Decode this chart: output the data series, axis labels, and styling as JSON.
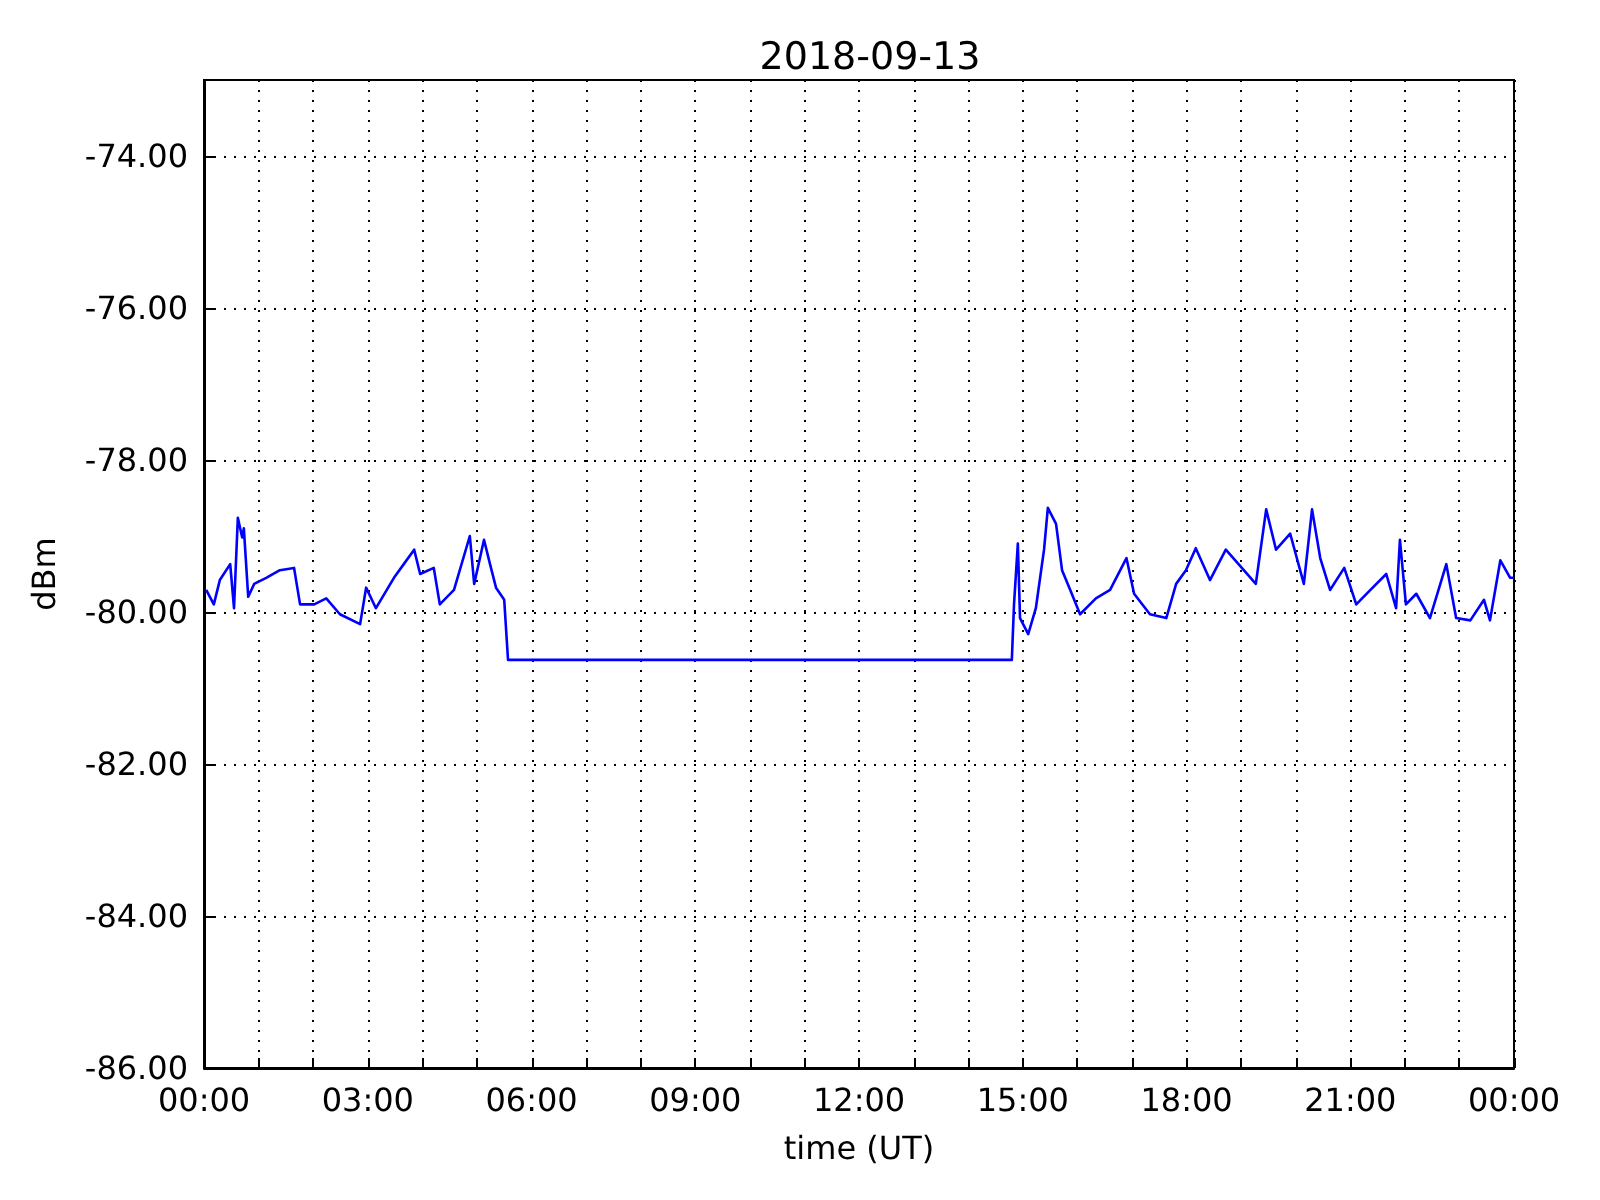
{
  "chart_data": {
    "type": "line",
    "title": "2018-09-13",
    "xlabel": "time (UT)",
    "ylabel": "dBm",
    "xlim": [
      0,
      24
    ],
    "ylim": [
      -86,
      -73
    ],
    "xticks": [
      {
        "value": 0,
        "label": "00:00"
      },
      {
        "value": 1,
        "label": null
      },
      {
        "value": 2,
        "label": null
      },
      {
        "value": 3,
        "label": "03:00"
      },
      {
        "value": 4,
        "label": null
      },
      {
        "value": 5,
        "label": null
      },
      {
        "value": 6,
        "label": "06:00"
      },
      {
        "value": 7,
        "label": null
      },
      {
        "value": 8,
        "label": null
      },
      {
        "value": 9,
        "label": "09:00"
      },
      {
        "value": 10,
        "label": null
      },
      {
        "value": 11,
        "label": null
      },
      {
        "value": 12,
        "label": "12:00"
      },
      {
        "value": 13,
        "label": null
      },
      {
        "value": 14,
        "label": null
      },
      {
        "value": 15,
        "label": "15:00"
      },
      {
        "value": 16,
        "label": null
      },
      {
        "value": 17,
        "label": null
      },
      {
        "value": 18,
        "label": "18:00"
      },
      {
        "value": 19,
        "label": null
      },
      {
        "value": 20,
        "label": null
      },
      {
        "value": 21,
        "label": "21:00"
      },
      {
        "value": 22,
        "label": null
      },
      {
        "value": 23,
        "label": null
      },
      {
        "value": 24,
        "label": "00:00"
      }
    ],
    "yticks": [
      {
        "value": -86,
        "label": "-86.00"
      },
      {
        "value": -84,
        "label": "-84.00"
      },
      {
        "value": -82,
        "label": "-82.00"
      },
      {
        "value": -80,
        "label": "-80.00"
      },
      {
        "value": -78,
        "label": "-78.00"
      },
      {
        "value": -76,
        "label": "-76.00"
      },
      {
        "value": -74,
        "label": "-74.00"
      }
    ],
    "grid": true,
    "line_style": "solid",
    "marker": "none",
    "series": [
      {
        "color": "#0000ff",
        "x": [
          0.04,
          0.18,
          0.29,
          0.48,
          0.55,
          0.62,
          0.7,
          0.73,
          0.81,
          0.92,
          1.14,
          1.39,
          1.65,
          1.76,
          2.02,
          2.24,
          2.49,
          2.86,
          2.97,
          3.15,
          3.48,
          3.66,
          3.85,
          3.96,
          4.21,
          4.32,
          4.58,
          4.87,
          4.95,
          5.13,
          5.24,
          5.35,
          5.5,
          5.57,
          14.8,
          14.84,
          14.91,
          14.95,
          15.1,
          15.24,
          15.39,
          15.46,
          15.61,
          15.72,
          15.87,
          16.05,
          16.34,
          16.6,
          16.9,
          17.04,
          17.33,
          17.63,
          17.81,
          17.99,
          18.17,
          18.43,
          18.72,
          19.05,
          19.27,
          19.46,
          19.64,
          19.9,
          20.15,
          20.3,
          20.45,
          20.63,
          20.89,
          21.11,
          21.37,
          21.66,
          21.84,
          21.91,
          22.02,
          22.21,
          22.46,
          22.76,
          22.94,
          23.2,
          23.45,
          23.56,
          23.75,
          23.93,
          24
        ],
        "values": [
          -79.71,
          -79.9,
          -79.58,
          -79.37,
          -79.95,
          -78.76,
          -79.02,
          -78.9,
          -79.8,
          -79.63,
          -79.55,
          -79.45,
          -79.42,
          -79.9,
          -79.9,
          -79.82,
          -80.03,
          -80.16,
          -79.68,
          -79.95,
          -79.55,
          -79.37,
          -79.18,
          -79.5,
          -79.42,
          -79.9,
          -79.71,
          -79.0,
          -79.63,
          -79.05,
          -79.37,
          -79.68,
          -79.84,
          -80.63,
          -80.63,
          -79.9,
          -79.1,
          -80.08,
          -80.29,
          -79.95,
          -79.18,
          -78.63,
          -78.84,
          -79.45,
          -79.71,
          -80.03,
          -79.82,
          -79.71,
          -79.29,
          -79.76,
          -80.03,
          -80.08,
          -79.63,
          -79.45,
          -79.16,
          -79.58,
          -79.18,
          -79.45,
          -79.63,
          -78.65,
          -79.18,
          -78.97,
          -79.63,
          -78.65,
          -79.29,
          -79.71,
          -79.42,
          -79.9,
          -79.71,
          -79.5,
          -79.95,
          -79.05,
          -79.9,
          -79.76,
          -80.08,
          -79.37,
          -80.08,
          -80.11,
          -79.84,
          -80.11,
          -79.32,
          -79.55,
          -79.55
        ]
      }
    ]
  }
}
